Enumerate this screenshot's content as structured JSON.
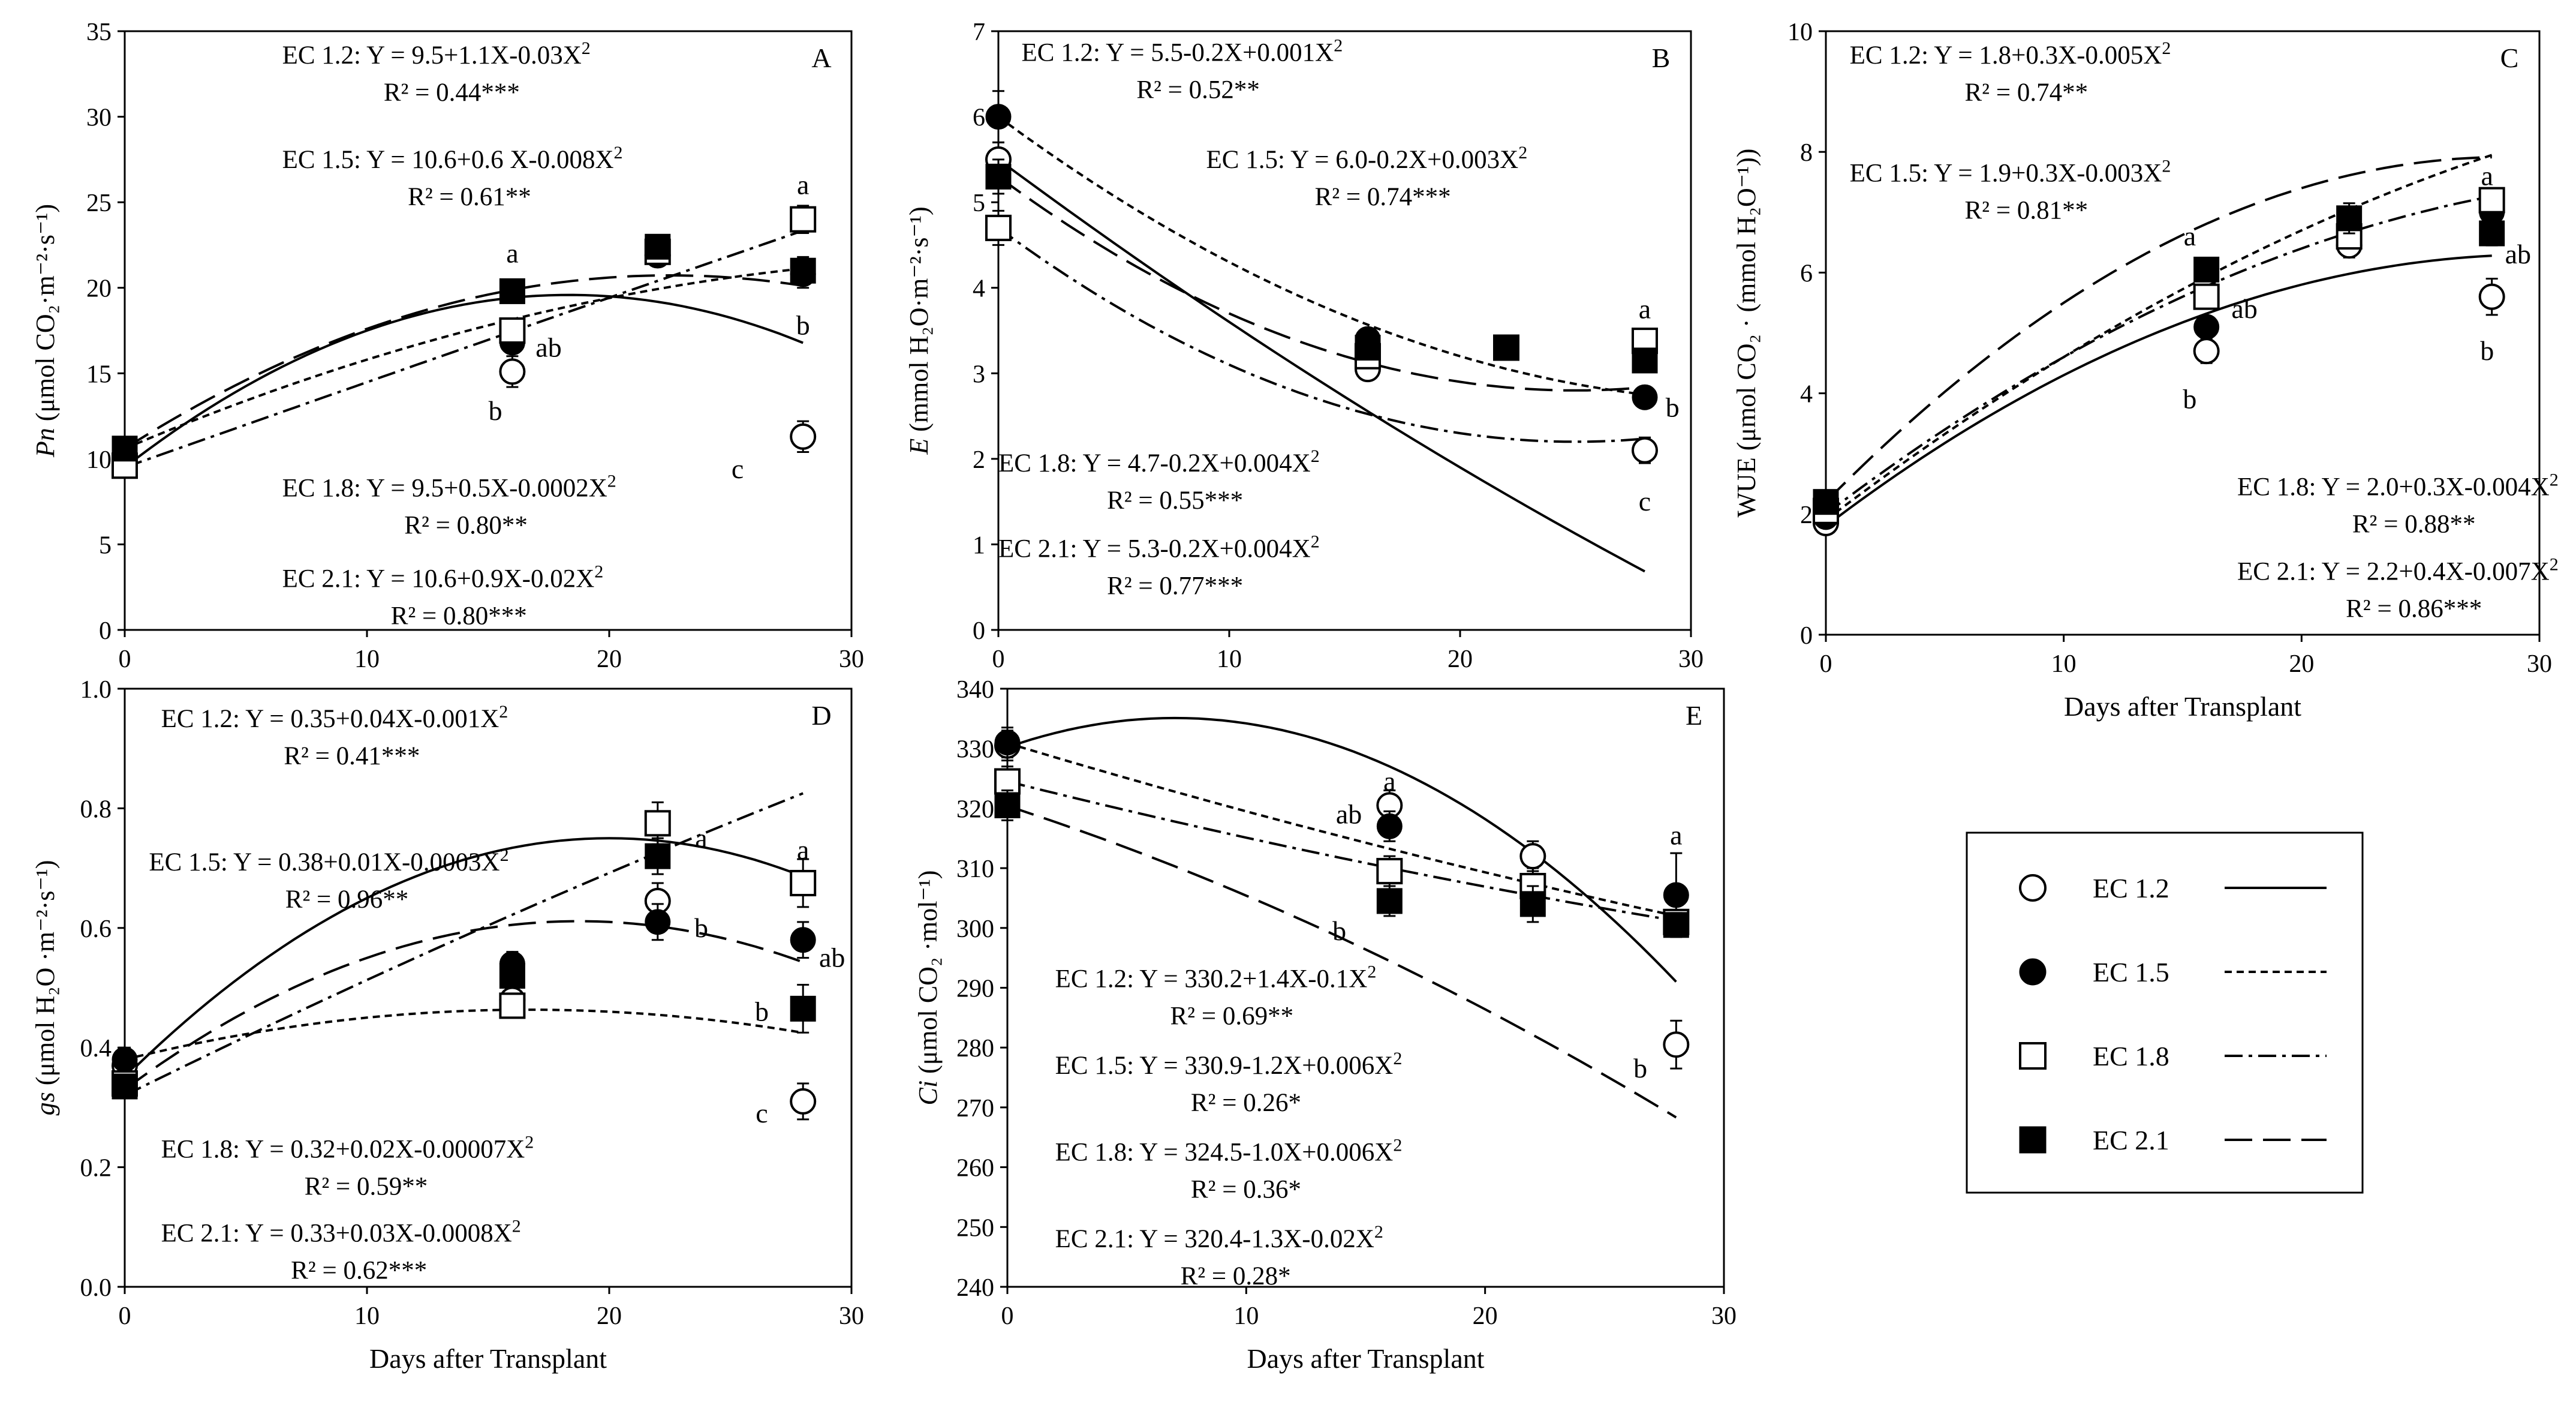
{
  "colors": {
    "ink": "#000000",
    "background": "#ffffff"
  },
  "legend": {
    "items": [
      {
        "label": "EC 1.2",
        "marker": "open-circle",
        "line": "solid"
      },
      {
        "label": "EC 1.5",
        "marker": "filled-circle",
        "line": "dotted"
      },
      {
        "label": "EC 1.8",
        "marker": "open-square",
        "line": "dash-dot"
      },
      {
        "label": "EC 2.1",
        "marker": "filled-square",
        "line": "long-dash"
      }
    ]
  },
  "chart_data": [
    {
      "panel": "A",
      "type": "scatter",
      "xlabel": "",
      "ylabel_italic": "Pn",
      "ylabel_unit": " (μmol CO₂·m⁻²·s⁻¹)",
      "xlim": [
        0,
        30
      ],
      "ylim": [
        0,
        35
      ],
      "xticks": [
        0,
        10,
        20,
        30
      ],
      "yticks": [
        0,
        5,
        10,
        15,
        20,
        25,
        30,
        35
      ],
      "x": [
        0,
        16,
        22,
        28
      ],
      "series": [
        {
          "name": "EC 1.2",
          "values": [
            10.0,
            15.1,
            21.9,
            11.3
          ],
          "errors": [
            0.3,
            0.9,
            0.6,
            0.9
          ],
          "fit": [
            9.5,
            1.1,
            -0.03
          ]
        },
        {
          "name": "EC 1.5",
          "values": [
            10.3,
            16.8,
            22.0,
            20.8
          ],
          "errors": [
            0.3,
            0.6,
            0.6,
            0.8
          ],
          "fit": [
            10.6,
            0.6,
            -0.008
          ]
        },
        {
          "name": "EC 1.8",
          "values": [
            9.6,
            17.5,
            22.1,
            24.0
          ],
          "errors": [
            0.3,
            0.7,
            0.5,
            0.8
          ],
          "fit": [
            9.5,
            0.5,
            -0.0002
          ]
        },
        {
          "name": "EC 2.1",
          "values": [
            10.6,
            19.8,
            22.4,
            21.0
          ],
          "errors": [
            0.3,
            0.5,
            0.5,
            0.8
          ],
          "fit": [
            10.6,
            0.9,
            -0.02
          ]
        }
      ],
      "letters": [
        {
          "text": "a",
          "x": 16,
          "y": 22.0
        },
        {
          "text": "ab",
          "x": 17.5,
          "y": 16.5
        },
        {
          "text": "b",
          "x": 15.3,
          "y": 12.8
        },
        {
          "text": "a",
          "x": 28,
          "y": 26.0
        },
        {
          "text": "b",
          "x": 28,
          "y": 17.8
        },
        {
          "text": "c",
          "x": 25.3,
          "y": 9.4
        }
      ],
      "equations": [
        {
          "label": "EC 1.2: ",
          "eq": "Y = 9.5+1.1X-0.03X",
          "r2": "R² = 0.44***",
          "anchor": [
            6.5,
            33.6
          ],
          "align": "start"
        },
        {
          "label": "EC 1.5: ",
          "eq": "Y = 10.6+0.6 X-0.008X",
          "r2": "R² = 0.61**",
          "anchor": [
            6.5,
            27.5
          ],
          "align": "start"
        },
        {
          "label": "EC 1.8: ",
          "eq": "Y = 9.5+0.5X-0.0002X",
          "r2": "R² = 0.80**",
          "anchor": [
            6.5,
            8.3
          ],
          "align": "start"
        },
        {
          "label": "EC 2.1: ",
          "eq": "Y = 10.6+0.9X-0.02X",
          "r2": "R² = 0.80***",
          "anchor": [
            6.5,
            3.0
          ],
          "align": "start"
        }
      ]
    },
    {
      "panel": "B",
      "type": "scatter",
      "xlabel": "",
      "ylabel_italic": "E",
      "ylabel_unit": " (mmol H₂O·m⁻²·s⁻¹)",
      "xlim": [
        0,
        30
      ],
      "ylim": [
        0,
        7
      ],
      "xticks": [
        0,
        10,
        20,
        30
      ],
      "yticks": [
        0,
        1,
        2,
        3,
        4,
        5,
        6,
        7
      ],
      "x": [
        0,
        16,
        22,
        28
      ],
      "series": [
        {
          "name": "EC 1.2",
          "values": [
            5.5,
            3.05,
            3.3,
            2.1
          ],
          "errors": [
            0.2,
            0.1,
            0.1,
            0.15
          ],
          "fit": [
            5.5,
            -0.2,
            0.001
          ]
        },
        {
          "name": "EC 1.5",
          "values": [
            6.0,
            3.4,
            3.3,
            2.72
          ],
          "errors": [
            0.3,
            0.1,
            0.1,
            0.1
          ],
          "fit": [
            6.0,
            -0.2,
            0.003
          ]
        },
        {
          "name": "EC 1.8",
          "values": [
            4.7,
            3.2,
            3.3,
            3.38
          ],
          "errors": [
            0.2,
            0.1,
            0.1,
            0.12
          ],
          "fit": [
            4.7,
            -0.2,
            0.004
          ]
        },
        {
          "name": "EC 2.1",
          "values": [
            5.3,
            3.3,
            3.3,
            3.15
          ],
          "errors": [
            0.2,
            0.1,
            0.1,
            0.1
          ],
          "fit": [
            5.3,
            -0.2,
            0.004
          ]
        }
      ],
      "letters": [
        {
          "text": "a",
          "x": 28,
          "y": 3.75
        },
        {
          "text": "b",
          "x": 29.2,
          "y": 2.6
        },
        {
          "text": "c",
          "x": 28,
          "y": 1.5
        }
      ],
      "equations": [
        {
          "label": "EC 1.2: ",
          "eq": "Y = 5.5-0.2X+0.001X",
          "r2": "R² = 0.52**",
          "anchor": [
            1.0,
            6.75
          ],
          "align": "start"
        },
        {
          "label": "EC 1.5: ",
          "eq": "Y = 6.0-0.2X+0.003X",
          "r2": "R² = 0.74***",
          "anchor": [
            9.0,
            5.5
          ],
          "align": "start"
        },
        {
          "label": "EC 1.8: ",
          "eq": "Y = 4.7-0.2X+0.004X",
          "r2": "R² = 0.55***",
          "anchor": [
            0.0,
            1.95
          ],
          "align": "start"
        },
        {
          "label": "EC 2.1: ",
          "eq": "Y = 5.3-0.2X+0.004X",
          "r2": "R² = 0.77***",
          "anchor": [
            0.0,
            0.95
          ],
          "align": "start"
        }
      ]
    },
    {
      "panel": "C",
      "type": "scatter",
      "xlabel": "Days after Transplant",
      "ylabel_italic": "",
      "ylabel_unit": "WUE (μmol CO₂ · (mmol H₂O⁻¹))",
      "xlim": [
        0,
        30
      ],
      "ylim": [
        0,
        10
      ],
      "xticks": [
        0,
        10,
        20,
        30
      ],
      "yticks": [
        0,
        2,
        4,
        6,
        8,
        10
      ],
      "x": [
        0,
        16,
        22,
        28
      ],
      "series": [
        {
          "name": "EC 1.2",
          "values": [
            1.85,
            4.7,
            6.45,
            5.6
          ],
          "errors": [
            0.1,
            0.2,
            0.2,
            0.3
          ],
          "fit": [
            1.8,
            0.3,
            -0.005
          ]
        },
        {
          "name": "EC 1.5",
          "values": [
            1.95,
            5.1,
            6.8,
            7.0
          ],
          "errors": [
            0.1,
            0.15,
            0.2,
            0.2
          ],
          "fit": [
            1.9,
            0.3,
            -0.003
          ]
        },
        {
          "name": "EC 1.8",
          "values": [
            2.05,
            5.6,
            6.6,
            7.2
          ],
          "errors": [
            0.1,
            0.15,
            0.2,
            0.2
          ],
          "fit": [
            2.0,
            0.3,
            -0.004
          ]
        },
        {
          "name": "EC 2.1",
          "values": [
            2.2,
            6.05,
            6.9,
            6.65
          ],
          "errors": [
            0.1,
            0.15,
            0.25,
            0.2
          ],
          "fit": [
            2.2,
            0.4,
            -0.007
          ]
        }
      ],
      "letters": [
        {
          "text": "a",
          "x": 15.3,
          "y": 6.6
        },
        {
          "text": "ab",
          "x": 17.6,
          "y": 5.4
        },
        {
          "text": "b",
          "x": 15.3,
          "y": 3.9
        },
        {
          "text": "a",
          "x": 27.8,
          "y": 7.6
        },
        {
          "text": "ab",
          "x": 29.1,
          "y": 6.3
        },
        {
          "text": "b",
          "x": 27.8,
          "y": 4.7
        }
      ],
      "equations": [
        {
          "label": "EC 1.2: ",
          "eq": "Y = 1.8+0.3X-0.005X",
          "r2": "R² = 0.74**",
          "anchor": [
            1.0,
            9.6
          ],
          "align": "start"
        },
        {
          "label": "EC 1.5: ",
          "eq": "Y = 1.9+0.3X-0.003X",
          "r2": "R² = 0.81**",
          "anchor": [
            1.0,
            7.65
          ],
          "align": "start"
        },
        {
          "label": "EC 1.8: ",
          "eq": "Y = 2.0+0.3X-0.004X",
          "r2": "R² = 0.88**",
          "anchor": [
            30.8,
            2.45
          ],
          "align": "end"
        },
        {
          "label": "EC 2.1: ",
          "eq": "Y = 2.2+0.4X-0.007X",
          "r2": "R² = 0.86***",
          "anchor": [
            30.8,
            1.05
          ],
          "align": "end"
        }
      ]
    },
    {
      "panel": "D",
      "type": "scatter",
      "xlabel": "Days after Transplant",
      "ylabel_italic": "gs",
      "ylabel_unit": " (μmol H₂O ·m⁻²·s⁻¹)",
      "xlim": [
        0,
        30
      ],
      "ylim": [
        0,
        1.0
      ],
      "xticks": [
        0,
        10,
        20,
        30
      ],
      "yticks": [
        0.0,
        0.2,
        0.4,
        0.6,
        0.8,
        1.0
      ],
      "x": [
        0,
        16,
        22,
        28
      ],
      "series": [
        {
          "name": "EC 1.2",
          "values": [
            0.37,
            0.48,
            0.645,
            0.31
          ],
          "errors": [
            0.02,
            0.02,
            0.03,
            0.03
          ],
          "fit": [
            0.35,
            0.04,
            -0.001
          ]
        },
        {
          "name": "EC 1.5",
          "values": [
            0.38,
            0.54,
            0.61,
            0.58
          ],
          "errors": [
            0.02,
            0.02,
            0.03,
            0.03
          ],
          "fit": [
            0.38,
            0.01,
            -0.0003
          ]
        },
        {
          "name": "EC 1.8",
          "values": [
            0.34,
            0.47,
            0.775,
            0.675
          ],
          "errors": [
            0.02,
            0.02,
            0.035,
            0.04
          ],
          "fit": [
            0.32,
            0.02,
            -7e-05
          ]
        },
        {
          "name": "EC 2.1",
          "values": [
            0.335,
            0.52,
            0.72,
            0.465
          ],
          "errors": [
            0.02,
            0.02,
            0.03,
            0.04
          ],
          "fit": [
            0.33,
            0.03,
            -0.0008
          ]
        }
      ],
      "letters": [
        {
          "text": "a",
          "x": 23.8,
          "y": 0.75
        },
        {
          "text": "b",
          "x": 23.8,
          "y": 0.6
        },
        {
          "text": "a",
          "x": 28,
          "y": 0.73
        },
        {
          "text": "ab",
          "x": 29.2,
          "y": 0.55
        },
        {
          "text": "b",
          "x": 26.3,
          "y": 0.46
        },
        {
          "text": "c",
          "x": 26.3,
          "y": 0.29
        }
      ],
      "equations": [
        {
          "label": "EC 1.2: ",
          "eq": "Y = 0.35+0.04X-0.001X",
          "r2": "R² = 0.41***",
          "anchor": [
            1.5,
            0.95
          ],
          "align": "start"
        },
        {
          "label": "EC 1.5: ",
          "eq": "Y = 0.38+0.01X-0.0003X",
          "r2": "R² = 0.96**",
          "anchor": [
            1.0,
            0.71
          ],
          "align": "start"
        },
        {
          "label": "EC 1.8: ",
          "eq": "Y = 0.32+0.02X-0.00007X",
          "r2": "R² = 0.59**",
          "anchor": [
            1.5,
            0.23
          ],
          "align": "start"
        },
        {
          "label": "EC 2.1: ",
          "eq": "Y = 0.33+0.03X-0.0008X",
          "r2": "R² = 0.62***",
          "anchor": [
            1.5,
            0.09
          ],
          "align": "start"
        }
      ]
    },
    {
      "panel": "E",
      "type": "scatter",
      "xlabel": "Days after Transplant",
      "ylabel_italic": "Ci",
      "ylabel_unit": " (μmol CO₂ ·mol⁻¹)",
      "xlim": [
        0,
        30
      ],
      "ylim": [
        240,
        340
      ],
      "xticks": [
        0,
        10,
        20,
        30
      ],
      "yticks": [
        240,
        250,
        260,
        270,
        280,
        290,
        300,
        310,
        320,
        330,
        340
      ],
      "x": [
        0,
        16,
        22,
        28
      ],
      "series": [
        {
          "name": "EC 1.2",
          "values": [
            330.5,
            320.5,
            312.0,
            280.5
          ],
          "errors": [
            2.5,
            2.5,
            2.5,
            4.0
          ],
          "fit": [
            330.2,
            1.4,
            -0.1
          ]
        },
        {
          "name": "EC 1.5",
          "values": [
            331.0,
            317.0,
            306.0,
            305.5
          ],
          "errors": [
            2.5,
            2.5,
            3.0,
            7.0
          ],
          "fit": [
            330.9,
            -1.2,
            0.006
          ]
        },
        {
          "name": "EC 1.8",
          "values": [
            324.5,
            309.5,
            307.0,
            301.0
          ],
          "errors": [
            2.5,
            2.5,
            3.0,
            2.0
          ],
          "fit": [
            324.5,
            -1.0,
            0.006
          ]
        },
        {
          "name": "EC 2.1",
          "values": [
            320.5,
            304.5,
            304.0,
            300.5
          ],
          "errors": [
            2.5,
            2.5,
            3.0,
            2.0
          ],
          "fit": [
            320.4,
            -1.3,
            -0.02
          ]
        }
      ],
      "letters": [
        {
          "text": "a",
          "x": 16,
          "y": 324.5
        },
        {
          "text": "ab",
          "x": 14.3,
          "y": 319.0
        },
        {
          "text": "b",
          "x": 13.9,
          "y": 299.5
        },
        {
          "text": "a",
          "x": 28,
          "y": 315.5
        },
        {
          "text": "b",
          "x": 26.5,
          "y": 276.5
        }
      ],
      "equations": [
        {
          "label": "EC 1.2: ",
          "eq": "Y = 330.2+1.4X-0.1X",
          "r2": "R² = 0.69**",
          "anchor": [
            2.0,
            291.5
          ],
          "align": "start"
        },
        {
          "label": "EC 1.5: ",
          "eq": "Y = 330.9-1.2X+0.006X",
          "r2": "R² = 0.26*",
          "anchor": [
            2.0,
            277.0
          ],
          "align": "start"
        },
        {
          "label": "EC 1.8: ",
          "eq": "Y = 324.5-1.0X+0.006X",
          "r2": "R² = 0.36*",
          "anchor": [
            2.0,
            262.5
          ],
          "align": "start"
        },
        {
          "label": "EC 2.1: ",
          "eq": "Y = 320.4-1.3X-0.02X",
          "r2": "R² = 0.28*",
          "anchor": [
            2.0,
            248.0
          ],
          "align": "start"
        }
      ]
    }
  ]
}
